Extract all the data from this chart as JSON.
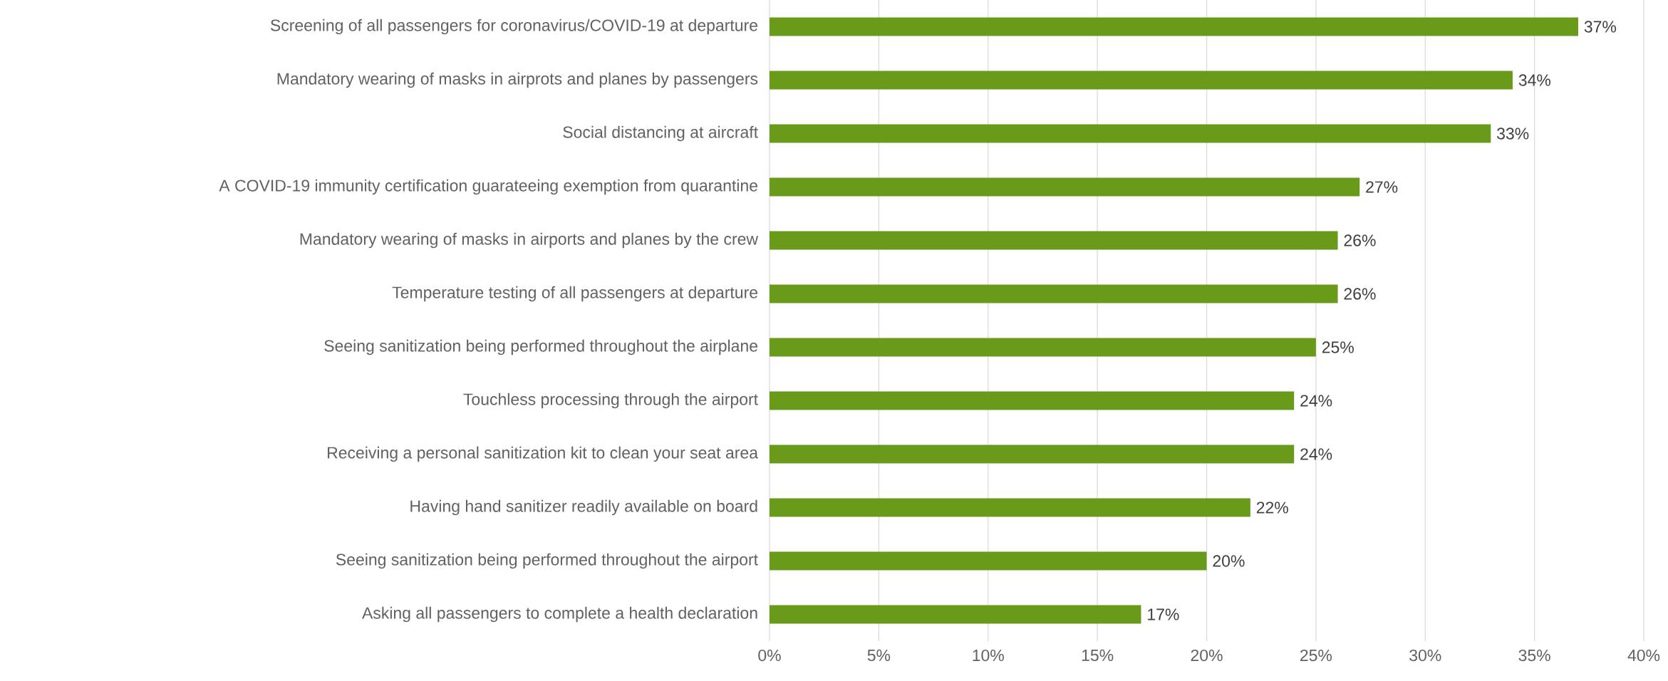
{
  "chart_data": {
    "type": "bar",
    "orientation": "horizontal",
    "categories": [
      "Screening of all passengers for coronavirus/COVID-19 at departure",
      "Mandatory wearing of masks in airprots and planes by passengers",
      "Social distancing at aircraft",
      "A COVID-19 immunity certification guarateeing exemption from quarantine",
      "Mandatory wearing of masks in airports and planes by the crew",
      "Temperature testing of all passengers at departure",
      "Seeing sanitization being performed throughout the airplane",
      "Touchless processing through the airport",
      "Receiving a personal sanitization kit to clean your seat area",
      "Having hand sanitizer readily available on board",
      "Seeing sanitization being performed throughout the airport",
      "Asking all passengers to complete a health declaration"
    ],
    "values": [
      37,
      34,
      33,
      27,
      26,
      26,
      25,
      24,
      24,
      22,
      20,
      17
    ],
    "value_labels": [
      "37%",
      "34%",
      "33%",
      "27%",
      "26%",
      "26%",
      "25%",
      "24%",
      "24%",
      "22%",
      "20%",
      "17%"
    ],
    "color": "#6a9a1a",
    "xlim": [
      0,
      40
    ],
    "xticks": [
      {
        "value": 0,
        "label": "0%"
      },
      {
        "value": 5,
        "label": "5%"
      },
      {
        "value": 10,
        "label": "10%"
      },
      {
        "value": 15,
        "label": "15%"
      },
      {
        "value": 20,
        "label": "20%"
      },
      {
        "value": 25,
        "label": "25%"
      },
      {
        "value": 30,
        "label": "30%"
      },
      {
        "value": 35,
        "label": "35%"
      },
      {
        "value": 40,
        "label": "40%"
      }
    ],
    "grid": "x"
  }
}
